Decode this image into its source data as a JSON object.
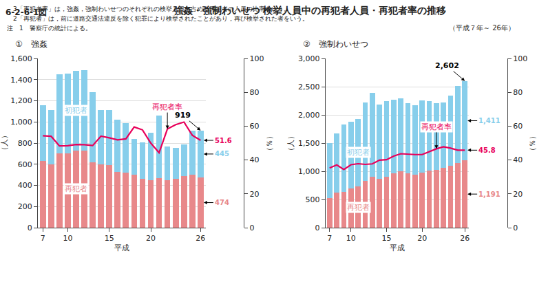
{
  "title": "強姦・強制わいせつ 検挙人員中の再犯者人員・再犯者率の推移",
  "subtitle": "（平成７年～ 26年）",
  "annotations": [
    "6-2-6-1図",
    "注　1　警察庁の統計による。",
    "　2「再犯者」は，前に道路交通法違反を除く犯罪により検挙されたことがあり，再び検挙された者をいう。",
    "　3「再犯者率」は，強姦，強制わいせつのそれぞれの検挙人員に占める再犯者の人員の比率をいう。"
  ],
  "chart_data": [
    {
      "type": "bar",
      "stacked": true,
      "title": "①　強姦",
      "xlabel": "平成",
      "ylabel": "（人）",
      "y2label": "（％）",
      "categories": [
        7,
        null,
        null,
        10,
        null,
        null,
        null,
        null,
        15,
        null,
        null,
        null,
        null,
        20,
        null,
        null,
        null,
        null,
        null,
        26
      ],
      "series": [
        {
          "name": "再犯者",
          "color": "#E8888A",
          "values": [
            630,
            600,
            700,
            705,
            730,
            730,
            620,
            600,
            590,
            530,
            520,
            500,
            465,
            450,
            470,
            448,
            460,
            490,
            500,
            474
          ],
          "value_labels": [
            null,
            null,
            null,
            null,
            null,
            null,
            null,
            null,
            null,
            null,
            null,
            null,
            null,
            null,
            null,
            null,
            null,
            null,
            null,
            "474"
          ]
        },
        {
          "name": "初犯者",
          "color": "#87CEEB",
          "values": [
            530,
            510,
            750,
            750,
            755,
            760,
            660,
            510,
            520,
            490,
            470,
            340,
            340,
            450,
            590,
            320,
            295,
            295,
            415,
            445
          ],
          "value_labels": [
            null,
            null,
            null,
            null,
            null,
            null,
            null,
            null,
            null,
            null,
            null,
            null,
            null,
            null,
            null,
            null,
            null,
            null,
            null,
            "445"
          ]
        },
        {
          "name": "再犯者率",
          "type": "line",
          "axis": "y2",
          "color": "#E8005A",
          "values": [
            54.3,
            54.0,
            48.3,
            48.4,
            49.1,
            49.0,
            48.5,
            54.1,
            53.1,
            51.9,
            52.5,
            59.5,
            57.8,
            50.0,
            44.3,
            58.3,
            60.9,
            62.4,
            54.6,
            51.6
          ],
          "value_labels": [
            null,
            null,
            null,
            null,
            null,
            null,
            null,
            null,
            null,
            null,
            null,
            null,
            null,
            null,
            null,
            null,
            null,
            null,
            null,
            "51.6"
          ]
        }
      ],
      "ylim": [
        0,
        1600
      ],
      "yticks": [
        0,
        200,
        400,
        600,
        800,
        {
          "value": 1000,
          "label": "1,000"
        },
        {
          "value": 1200,
          "label": "1,200"
        },
        {
          "value": 1400,
          "label": "1,400"
        },
        {
          "value": 1600,
          "label": "1,600"
        }
      ],
      "y2lim": [
        0,
        100
      ],
      "y2ticks": [
        0,
        20,
        40,
        60,
        80,
        100
      ],
      "grid": true,
      "annotations": [
        {
          "text": "919",
          "x": 26,
          "y": 919
        }
      ]
    },
    {
      "type": "bar",
      "stacked": true,
      "title": "②　強制わいせつ",
      "xlabel": "平成",
      "ylabel": "（人）",
      "y2label": "（％）",
      "categories": [
        7,
        null,
        null,
        10,
        null,
        null,
        null,
        null,
        15,
        null,
        null,
        null,
        null,
        20,
        null,
        null,
        null,
        null,
        null,
        26
      ],
      "series": [
        {
          "name": "再犯者",
          "color": "#E8888A",
          "values": [
            530,
            620,
            630,
            700,
            730,
            830,
            900,
            870,
            900,
            960,
            1000,
            960,
            940,
            975,
            1010,
            1030,
            1060,
            1100,
            1150,
            1191
          ],
          "value_labels": [
            null,
            null,
            null,
            null,
            null,
            null,
            null,
            null,
            null,
            null,
            null,
            null,
            null,
            null,
            null,
            null,
            null,
            null,
            null,
            "1,191"
          ]
        },
        {
          "name": "初犯者",
          "color": "#87CEEB",
          "values": [
            970,
            1050,
            1200,
            1180,
            1200,
            1390,
            1490,
            1310,
            1340,
            1310,
            1290,
            1250,
            1235,
            1280,
            1235,
            1180,
            1155,
            1240,
            1360,
            1411
          ],
          "value_labels": [
            null,
            null,
            null,
            null,
            null,
            null,
            null,
            null,
            null,
            null,
            null,
            null,
            null,
            null,
            null,
            null,
            null,
            null,
            null,
            "1,411"
          ]
        },
        {
          "name": "再犯者率",
          "type": "line",
          "axis": "y2",
          "color": "#E8005A",
          "values": [
            35.3,
            37.1,
            34.4,
            37.2,
            37.8,
            37.4,
            37.7,
            39.9,
            40.2,
            42.3,
            43.7,
            43.4,
            43.2,
            43.2,
            45.0,
            46.6,
            47.8,
            47.0,
            45.8,
            45.8
          ],
          "value_labels": [
            null,
            null,
            null,
            null,
            null,
            null,
            null,
            null,
            null,
            null,
            null,
            null,
            null,
            null,
            null,
            null,
            null,
            null,
            null,
            "45.8"
          ]
        }
      ],
      "ylim": [
        0,
        3000
      ],
      "yticks": [
        0,
        500,
        {
          "value": 1000,
          "label": "1,000"
        },
        {
          "value": 1500,
          "label": "1,500"
        },
        {
          "value": 2000,
          "label": "2,000"
        },
        {
          "value": 2500,
          "label": "2,500"
        },
        {
          "value": 3000,
          "label": "3,000"
        }
      ],
      "y2lim": [
        0,
        100
      ],
      "y2ticks": [
        0,
        20,
        40,
        60,
        80,
        100
      ],
      "grid": true,
      "annotations": [
        {
          "text": "2,602",
          "x": 26,
          "y": 2602
        }
      ]
    }
  ]
}
